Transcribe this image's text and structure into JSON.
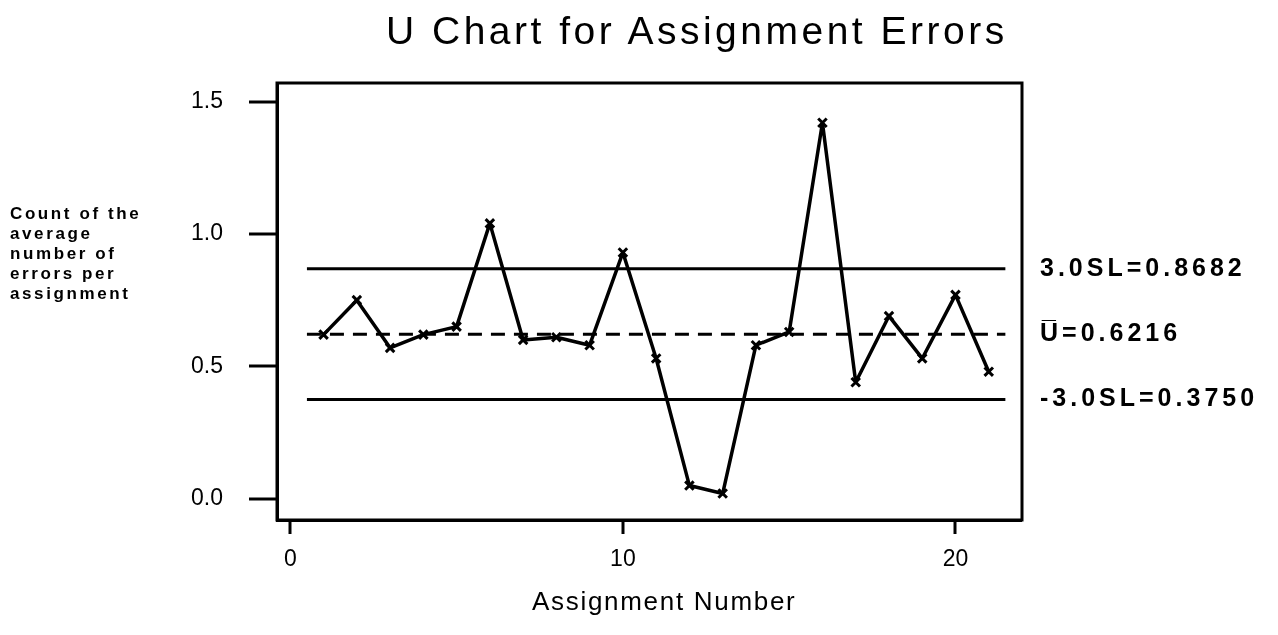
{
  "chart_data": {
    "type": "line",
    "title": "U Chart for Assignment Errors",
    "xlabel": "Assignment Number",
    "ylabel": "Count of the average number of errors per assignment",
    "x": [
      1,
      2,
      3,
      4,
      5,
      6,
      7,
      8,
      9,
      10,
      11,
      12,
      13,
      14,
      15,
      16,
      17,
      18,
      19,
      20,
      21
    ],
    "values": [
      0.62,
      0.75,
      0.57,
      0.62,
      0.65,
      1.04,
      0.6,
      0.61,
      0.58,
      0.93,
      0.53,
      0.05,
      0.02,
      0.58,
      0.63,
      1.42,
      0.44,
      0.69,
      0.53,
      0.77,
      0.48
    ],
    "color": "#000000",
    "marker": "cross",
    "xlim": [
      -0.4,
      22
    ],
    "xticks": [
      0,
      10,
      20
    ],
    "ylim": [
      -0.08,
      1.57
    ],
    "yticks": [
      {
        "value": 0,
        "label": "0.0"
      },
      {
        "value": 0.5,
        "label": "0.5"
      },
      {
        "value": 1,
        "label": "1.0"
      },
      {
        "value": 1.5,
        "label": "1.5"
      }
    ],
    "ref_lines": [
      {
        "axis": "y",
        "value": 0.8682,
        "label": "3.0SL=0.8682",
        "color": "#000000"
      },
      {
        "axis": "y",
        "value": 0.6216,
        "label": "U̅=0.6216",
        "color": "#000000",
        "line_style": "dashed"
      },
      {
        "axis": "y",
        "value": 0.375,
        "label": "-3.0SL=0.3750",
        "color": "#000000"
      }
    ]
  }
}
